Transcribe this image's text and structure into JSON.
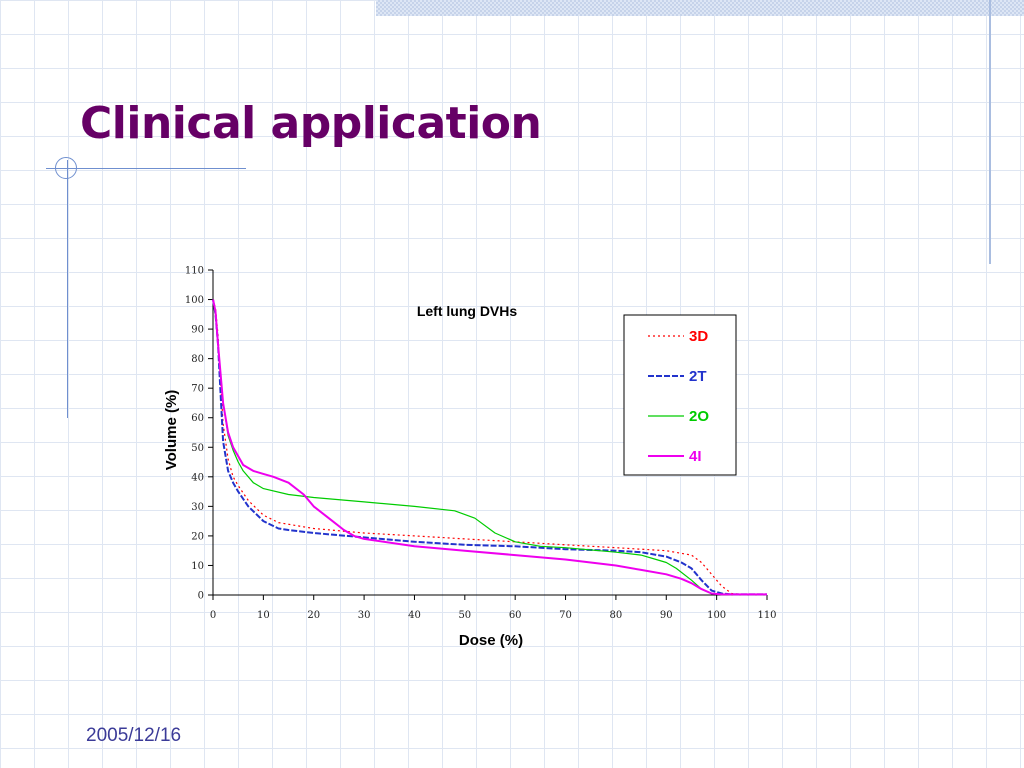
{
  "slide": {
    "title": "Clinical application",
    "date": "2005/12/16"
  },
  "colors": {
    "title": "#660066",
    "date": "#3b3b98",
    "grid": "#dfe6f2",
    "accent_line": "#6f8fcf"
  },
  "chart_data": {
    "type": "line",
    "title": "Left lung DVHs",
    "xlabel": "Dose (%)",
    "ylabel": "Volume (%)",
    "xlim": [
      0,
      110
    ],
    "ylim": [
      0,
      110
    ],
    "xticks": [
      0,
      10,
      20,
      30,
      40,
      50,
      60,
      70,
      80,
      90,
      100,
      110
    ],
    "yticks": [
      0,
      10,
      20,
      30,
      40,
      50,
      60,
      70,
      80,
      90,
      100,
      110
    ],
    "grid": false,
    "legend_position": "right",
    "series": [
      {
        "name": "3D",
        "color": "#ff0000",
        "dash": "dotted",
        "x": [
          0,
          0.5,
          1,
          1.5,
          2,
          3,
          4,
          5,
          7,
          10,
          13,
          20,
          30,
          40,
          50,
          60,
          70,
          80,
          90,
          95,
          97,
          99,
          101,
          103,
          105,
          110
        ],
        "y": [
          100,
          97,
          88,
          72,
          58,
          46,
          40,
          37,
          32,
          27,
          24.5,
          22.5,
          21,
          20,
          19,
          18,
          17,
          16,
          15,
          13.5,
          11,
          7,
          3,
          0.5,
          0.2,
          0.2
        ]
      },
      {
        "name": "2T",
        "color": "#2233cc",
        "dash": "dashed",
        "x": [
          0,
          0.5,
          1,
          1.5,
          2,
          3,
          4,
          5,
          7,
          10,
          13,
          15,
          20,
          30,
          40,
          50,
          60,
          70,
          80,
          85,
          90,
          93,
          95,
          97,
          99,
          101,
          103,
          110
        ],
        "y": [
          100,
          95,
          85,
          68,
          52,
          42,
          38,
          35,
          30,
          25,
          22.5,
          22,
          21,
          19.5,
          18,
          17,
          16.5,
          15.5,
          15,
          14.5,
          13,
          11,
          9,
          5,
          1.5,
          0.5,
          0.2,
          0.2
        ]
      },
      {
        "name": "2O",
        "color": "#00cc00",
        "dash": "solid",
        "x": [
          0,
          0.5,
          1,
          2,
          3,
          4,
          5,
          6,
          8,
          10,
          15,
          20,
          30,
          40,
          48,
          52,
          56,
          60,
          65,
          70,
          80,
          85,
          88,
          90,
          92,
          95,
          97,
          99,
          101,
          103,
          110
        ],
        "y": [
          100,
          95,
          85,
          65,
          54,
          49,
          45,
          42,
          38,
          36,
          34,
          33,
          31.5,
          30,
          28.5,
          26,
          21,
          18,
          16.5,
          16,
          14.5,
          13.5,
          12,
          11,
          9,
          5,
          2,
          0.5,
          0.2,
          0.2,
          0.2
        ]
      },
      {
        "name": "4I",
        "color": "#ee00ee",
        "dash": "solid",
        "x": [
          0,
          0.5,
          1,
          2,
          3,
          4,
          6,
          8,
          10,
          12,
          15,
          18,
          20,
          23,
          26,
          28,
          30,
          40,
          50,
          60,
          70,
          80,
          85,
          90,
          93,
          95,
          97,
          99,
          101,
          103,
          110
        ],
        "y": [
          100,
          96,
          85,
          65,
          55,
          50,
          44,
          42,
          41,
          40,
          38,
          34,
          30,
          26,
          22,
          20,
          19,
          16.5,
          15,
          13.5,
          12,
          10,
          8.5,
          7,
          5.5,
          4,
          2,
          0.5,
          0.2,
          0.2,
          0.2
        ]
      }
    ]
  }
}
